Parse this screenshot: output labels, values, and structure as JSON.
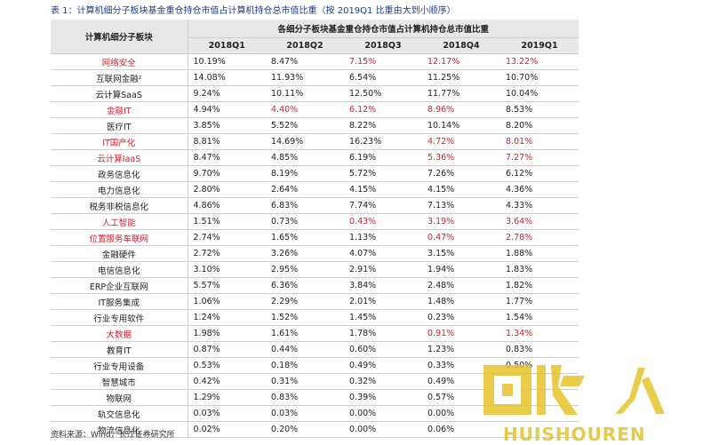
{
  "caption": "表 1：计算机细分子板块基金重仓持仓市值占计算机持仓总市值比重（按 2019Q1 比重由大到小顺序）",
  "table": {
    "category_header": "计算机细分子板块",
    "group_header": "各细分子板块基金重仓持仓市值占计算机持仓总市值比重",
    "quarters": [
      "2018Q1",
      "2018Q2",
      "2018Q3",
      "2018Q4",
      "2019Q1"
    ],
    "rows": [
      {
        "name": "网络安全",
        "name_red": true,
        "values": [
          "10.19%",
          "8.47%",
          "7.15%",
          "12.17%",
          "13.22%"
        ],
        "red": [
          false,
          false,
          true,
          true,
          true
        ]
      },
      {
        "name": "互联网金融²",
        "name_red": false,
        "values": [
          "14.08%",
          "11.93%",
          "6.54%",
          "11.25%",
          "10.70%"
        ],
        "red": [
          false,
          false,
          false,
          false,
          false
        ]
      },
      {
        "name": "云计算SaaS",
        "name_red": false,
        "values": [
          "9.24%",
          "10.11%",
          "12.50%",
          "11.77%",
          "10.04%"
        ],
        "red": [
          false,
          false,
          false,
          false,
          false
        ]
      },
      {
        "name": "金融IT",
        "name_red": true,
        "values": [
          "4.94%",
          "4.40%",
          "6.12%",
          "8.96%",
          "8.53%"
        ],
        "red": [
          false,
          true,
          true,
          true,
          false
        ]
      },
      {
        "name": "医疗IT",
        "name_red": false,
        "values": [
          "3.85%",
          "5.52%",
          "8.22%",
          "10.14%",
          "8.20%"
        ],
        "red": [
          false,
          false,
          false,
          false,
          false
        ]
      },
      {
        "name": "IT国产化",
        "name_red": true,
        "values": [
          "8.81%",
          "14.69%",
          "16.23%",
          "4.72%",
          "8.01%"
        ],
        "red": [
          false,
          false,
          false,
          true,
          true
        ]
      },
      {
        "name": "云计算IaaS",
        "name_red": true,
        "values": [
          "8.47%",
          "4.85%",
          "6.19%",
          "5.36%",
          "7.27%"
        ],
        "red": [
          false,
          false,
          false,
          true,
          true
        ]
      },
      {
        "name": "政务信息化",
        "name_red": false,
        "values": [
          "9.70%",
          "8.19%",
          "5.72%",
          "7.26%",
          "6.12%"
        ],
        "red": [
          false,
          false,
          false,
          false,
          false
        ]
      },
      {
        "name": "电力信息化",
        "name_red": false,
        "values": [
          "2.80%",
          "2.64%",
          "4.15%",
          "4.15%",
          "4.36%"
        ],
        "red": [
          false,
          false,
          false,
          false,
          false
        ]
      },
      {
        "name": "税务非税信息化",
        "name_red": false,
        "values": [
          "4.86%",
          "6.83%",
          "7.74%",
          "7.13%",
          "4.33%"
        ],
        "red": [
          false,
          false,
          false,
          false,
          false
        ]
      },
      {
        "name": "人工智能",
        "name_red": true,
        "values": [
          "1.51%",
          "0.73%",
          "0.43%",
          "3.19%",
          "3.64%"
        ],
        "red": [
          false,
          false,
          true,
          true,
          true
        ]
      },
      {
        "name": "位置服务车联网",
        "name_red": true,
        "values": [
          "2.74%",
          "1.65%",
          "1.13%",
          "0.47%",
          "2.78%"
        ],
        "red": [
          false,
          false,
          false,
          true,
          true
        ]
      },
      {
        "name": "金融硬件",
        "name_red": false,
        "values": [
          "2.72%",
          "3.26%",
          "4.07%",
          "3.15%",
          "1.88%"
        ],
        "red": [
          false,
          false,
          false,
          false,
          false
        ]
      },
      {
        "name": "电信信息化",
        "name_red": false,
        "values": [
          "3.10%",
          "2.95%",
          "2.91%",
          "1.94%",
          "1.83%"
        ],
        "red": [
          false,
          false,
          false,
          false,
          false
        ]
      },
      {
        "name": "ERP企业互联网",
        "name_red": false,
        "values": [
          "5.57%",
          "6.36%",
          "3.84%",
          "2.48%",
          "1.82%"
        ],
        "red": [
          false,
          false,
          false,
          false,
          false
        ]
      },
      {
        "name": "IT服务集成",
        "name_red": false,
        "values": [
          "1.06%",
          "2.29%",
          "2.01%",
          "1.48%",
          "1.77%"
        ],
        "red": [
          false,
          false,
          false,
          false,
          false
        ]
      },
      {
        "name": "行业专用软件",
        "name_red": false,
        "values": [
          "1.24%",
          "1.52%",
          "1.45%",
          "0.23%",
          "1.54%"
        ],
        "red": [
          false,
          false,
          false,
          false,
          false
        ]
      },
      {
        "name": "大数据",
        "name_red": true,
        "values": [
          "1.98%",
          "1.61%",
          "1.78%",
          "0.91%",
          "1.34%"
        ],
        "red": [
          false,
          false,
          false,
          true,
          true
        ]
      },
      {
        "name": "教育IT",
        "name_red": false,
        "values": [
          "0.87%",
          "0.44%",
          "0.60%",
          "1.23%",
          "0.83%"
        ],
        "red": [
          false,
          false,
          false,
          false,
          false
        ]
      },
      {
        "name": "行业专用设备",
        "name_red": false,
        "values": [
          "0.53%",
          "0.18%",
          "0.49%",
          "0.33%",
          "0.50%"
        ],
        "red": [
          false,
          false,
          false,
          false,
          false
        ]
      },
      {
        "name": "智慧城市",
        "name_red": false,
        "values": [
          "0.42%",
          "0.31%",
          "0.32%",
          "0.49%",
          ""
        ],
        "red": [
          false,
          false,
          false,
          false,
          false
        ]
      },
      {
        "name": "物联网",
        "name_red": false,
        "values": [
          "1.29%",
          "0.83%",
          "0.39%",
          "0.57%",
          ""
        ],
        "red": [
          false,
          false,
          false,
          false,
          false
        ]
      },
      {
        "name": "轨交信息化",
        "name_red": false,
        "values": [
          "0.03%",
          "0.03%",
          "0.00%",
          "0.00%",
          ""
        ],
        "red": [
          false,
          false,
          false,
          false,
          false
        ]
      },
      {
        "name": "物流信息化",
        "name_red": false,
        "values": [
          "0.02%",
          "0.20%",
          "0.00%",
          "0.06%",
          ""
        ],
        "red": [
          false,
          false,
          false,
          false,
          false
        ]
      }
    ]
  },
  "source": "资料来源：Wind，长江证券研究所",
  "watermark": {
    "brand_text": "HUISHOUREN",
    "logo_text": "回收人",
    "color": "#e6c22a"
  }
}
